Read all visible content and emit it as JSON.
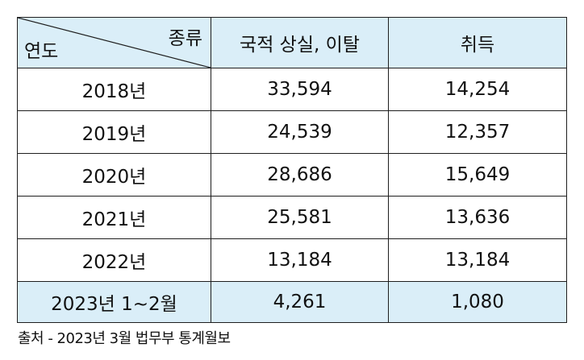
{
  "table": {
    "header": {
      "diag_top": "종류",
      "diag_bottom": "연도",
      "col_loss": "국적 상실, 이탈",
      "col_acquire": "취득"
    },
    "rows": [
      {
        "year": "2018년",
        "loss": "33,594",
        "acquire": "14,254"
      },
      {
        "year": "2019년",
        "loss": "24,539",
        "acquire": "12,357"
      },
      {
        "year": "2020년",
        "loss": "28,686",
        "acquire": "15,649"
      },
      {
        "year": "2021년",
        "loss": "25,581",
        "acquire": "13,636"
      },
      {
        "year": "2022년",
        "loss": "13,184",
        "acquire": "13,184"
      }
    ],
    "total": {
      "year": "2023년 1~2월",
      "loss": "4,261",
      "acquire": "1,080"
    }
  },
  "source": "출처 - 2023년 3월 법무부 통계월보",
  "colors": {
    "header_bg": "#daeef8",
    "border": "#1e1e1e"
  }
}
